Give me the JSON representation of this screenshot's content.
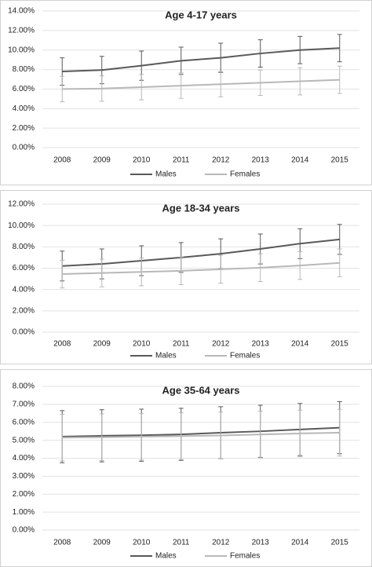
{
  "chart_data": [
    {
      "type": "line",
      "title": "Age 4-17 years",
      "categories": [
        "2008",
        "2009",
        "2010",
        "2011",
        "2012",
        "2013",
        "2014",
        "2015"
      ],
      "series": [
        {
          "name": "Males",
          "color": "#595959",
          "values": [
            7.8,
            7.95,
            8.4,
            8.9,
            9.2,
            9.65,
            10.0,
            10.2
          ],
          "errors": [
            1.4,
            1.4,
            1.5,
            1.4,
            1.5,
            1.4,
            1.4,
            1.4
          ]
        },
        {
          "name": "Females",
          "color": "#b8b8b8",
          "values": [
            6.0,
            6.05,
            6.2,
            6.35,
            6.5,
            6.65,
            6.8,
            6.95
          ],
          "errors": [
            1.3,
            1.3,
            1.3,
            1.3,
            1.3,
            1.3,
            1.4,
            1.4
          ]
        }
      ],
      "ylim": [
        0,
        14
      ],
      "yticks": [
        {
          "value": 0,
          "label": "0.00%"
        },
        {
          "value": 2,
          "label": "2.00%"
        },
        {
          "value": 4,
          "label": "4.00%"
        },
        {
          "value": 6,
          "label": "6.00%"
        },
        {
          "value": 8,
          "label": "8.00%"
        },
        {
          "value": 10,
          "label": "10.00%"
        },
        {
          "value": 12,
          "label": "12.00%"
        },
        {
          "value": 14,
          "label": "14.00%"
        }
      ],
      "legend": "bottom"
    },
    {
      "type": "line",
      "title": "Age 18-34 years",
      "categories": [
        "2008",
        "2009",
        "2010",
        "2011",
        "2012",
        "2013",
        "2014",
        "2015"
      ],
      "series": [
        {
          "name": "Males",
          "color": "#595959",
          "values": [
            6.2,
            6.4,
            6.7,
            7.0,
            7.35,
            7.8,
            8.3,
            8.7
          ],
          "errors": [
            1.4,
            1.4,
            1.4,
            1.4,
            1.4,
            1.4,
            1.4,
            1.4
          ]
        },
        {
          "name": "Females",
          "color": "#b8b8b8",
          "values": [
            5.45,
            5.55,
            5.65,
            5.75,
            5.9,
            6.05,
            6.25,
            6.5
          ],
          "errors": [
            1.3,
            1.3,
            1.3,
            1.3,
            1.3,
            1.3,
            1.3,
            1.3
          ]
        }
      ],
      "ylim": [
        0,
        12
      ],
      "yticks": [
        {
          "value": 0,
          "label": "0.00%"
        },
        {
          "value": 2,
          "label": "2.00%"
        },
        {
          "value": 4,
          "label": "4.00%"
        },
        {
          "value": 6,
          "label": "6.00%"
        },
        {
          "value": 8,
          "label": "8.00%"
        },
        {
          "value": 10,
          "label": "10.00%"
        },
        {
          "value": 12,
          "label": "12.00%"
        }
      ],
      "legend": "bottom"
    },
    {
      "type": "line",
      "title": "Age 35-64 years",
      "categories": [
        "2008",
        "2009",
        "2010",
        "2011",
        "2012",
        "2013",
        "2014",
        "2015"
      ],
      "series": [
        {
          "name": "Males",
          "color": "#595959",
          "values": [
            5.2,
            5.25,
            5.28,
            5.33,
            5.42,
            5.5,
            5.6,
            5.7
          ],
          "errors": [
            1.45,
            1.45,
            1.45,
            1.45,
            1.45,
            1.45,
            1.45,
            1.45
          ]
        },
        {
          "name": "Females",
          "color": "#b8b8b8",
          "values": [
            5.15,
            5.17,
            5.2,
            5.23,
            5.27,
            5.32,
            5.38,
            5.42
          ],
          "errors": [
            1.3,
            1.3,
            1.3,
            1.3,
            1.3,
            1.3,
            1.3,
            1.3
          ]
        }
      ],
      "ylim": [
        0,
        8
      ],
      "yticks": [
        {
          "value": 0,
          "label": "0.00%"
        },
        {
          "value": 1,
          "label": "1.00%"
        },
        {
          "value": 2,
          "label": "2.00%"
        },
        {
          "value": 3,
          "label": "3.00%"
        },
        {
          "value": 4,
          "label": "4.00%"
        },
        {
          "value": 5,
          "label": "5.00%"
        },
        {
          "value": 6,
          "label": "6.00%"
        },
        {
          "value": 7,
          "label": "7.00%"
        },
        {
          "value": 8,
          "label": "8.00%"
        }
      ],
      "legend": "bottom"
    }
  ]
}
